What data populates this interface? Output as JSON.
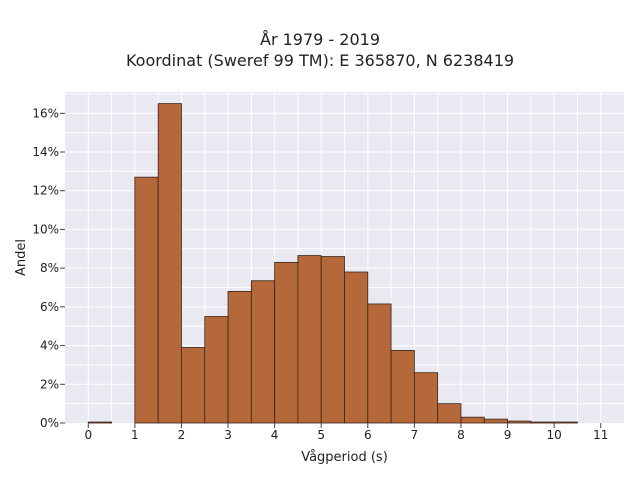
{
  "chart_data": {
    "type": "bar",
    "title": "År 1979 - 2019",
    "subtitle": "Koordinat (Sweref 99 TM): E 365870, N 6238419",
    "xlabel": "Vågperiod (s)",
    "ylabel": "Andel",
    "xlim": [
      -0.5,
      11.5
    ],
    "ylim": [
      0,
      17.1
    ],
    "x_ticks": [
      0,
      1,
      2,
      3,
      4,
      5,
      6,
      7,
      8,
      9,
      10,
      11
    ],
    "y_ticks": [
      0,
      2,
      4,
      6,
      8,
      10,
      12,
      14,
      16
    ],
    "y_tick_labels": [
      "0%",
      "2%",
      "4%",
      "6%",
      "8%",
      "10%",
      "12%",
      "14%",
      "16%"
    ],
    "bin_width": 0.5,
    "bins": [
      0,
      0.5,
      1,
      1.5,
      2,
      2.5,
      3,
      3.5,
      4,
      4.5,
      5,
      5.5,
      6,
      6.5,
      7,
      7.5,
      8,
      8.5,
      9,
      9.5,
      10
    ],
    "values": [
      0.05,
      0,
      12.7,
      16.5,
      3.9,
      5.5,
      6.8,
      7.35,
      8.3,
      8.65,
      8.6,
      7.8,
      6.15,
      3.75,
      2.6,
      1.0,
      0.3,
      0.2,
      0.1,
      0.05,
      0.05
    ],
    "grid": true,
    "colors": {
      "bar": "#b5683a",
      "edge": "#3a2418",
      "background": "#e9e9f1",
      "grid": "#ffffff"
    }
  }
}
